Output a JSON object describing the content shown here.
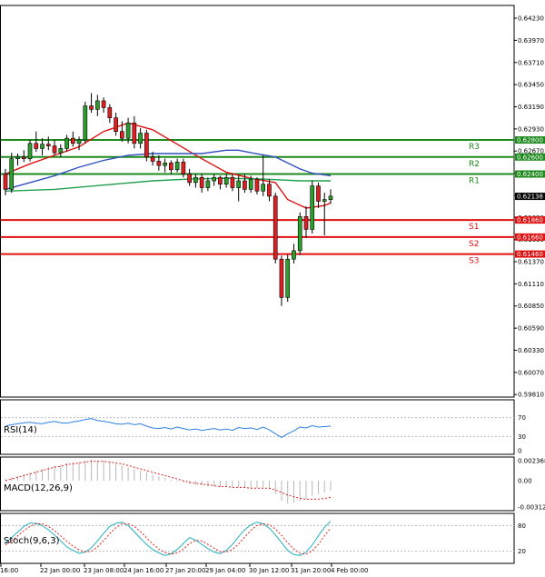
{
  "chart_data": {
    "type": "candlestick",
    "price_axis": {
      "ticks": [
        "0.64230",
        "0.63970",
        "0.63710",
        "0.63450",
        "0.63190",
        "0.62930",
        "0.62670",
        "0.62410",
        "0.62150",
        "0.61890",
        "0.61630",
        "0.61370",
        "0.61110",
        "0.60850",
        "0.60590",
        "0.60330",
        "0.60070",
        "0.59810"
      ],
      "range": [
        0.5978,
        0.6438
      ]
    },
    "x_ticks": [
      "16:00",
      "22 Jan 00:00",
      "23 Jan 08:00",
      "24 Jan 16:00",
      "27 Jan 20:00",
      "29 Jan 04:00",
      "30 Jan 12:00",
      "31 Jan 20:00",
      "4 Feb 00:00"
    ],
    "current_price": "0.62138",
    "levels": [
      {
        "label": "R3",
        "value": 0.628,
        "price_text": "0.62800",
        "color": "#1e8a1e"
      },
      {
        "label": "R2",
        "value": 0.626,
        "price_text": "0.62600",
        "color": "#1e8a1e"
      },
      {
        "label": "R1",
        "value": 0.624,
        "price_text": "0.62400",
        "color": "#1e8a1e"
      },
      {
        "label": "S1",
        "value": 0.6186,
        "price_text": "0.61860",
        "color": "#e01010"
      },
      {
        "label": "S2",
        "value": 0.6166,
        "price_text": "0.61660",
        "color": "#e01010"
      },
      {
        "label": "S3",
        "value": 0.6146,
        "price_text": "0.61460",
        "color": "#e01010"
      }
    ],
    "candles": [
      [
        0.624,
        0.6246,
        0.6215,
        0.6222
      ],
      [
        0.6222,
        0.6265,
        0.6218,
        0.6258
      ],
      [
        0.6258,
        0.6264,
        0.625,
        0.626
      ],
      [
        0.626,
        0.6268,
        0.6254,
        0.6258
      ],
      [
        0.6258,
        0.628,
        0.6255,
        0.6276
      ],
      [
        0.6276,
        0.629,
        0.6266,
        0.627
      ],
      [
        0.627,
        0.6282,
        0.6262,
        0.6275
      ],
      [
        0.6275,
        0.6284,
        0.6268,
        0.6273
      ],
      [
        0.6273,
        0.628,
        0.6262,
        0.6265
      ],
      [
        0.6265,
        0.6275,
        0.626,
        0.627
      ],
      [
        0.627,
        0.6286,
        0.6266,
        0.6282
      ],
      [
        0.6282,
        0.629,
        0.6272,
        0.6276
      ],
      [
        0.6276,
        0.6284,
        0.6268,
        0.628
      ],
      [
        0.628,
        0.6325,
        0.6276,
        0.632
      ],
      [
        0.632,
        0.6335,
        0.6312,
        0.6316
      ],
      [
        0.6316,
        0.6333,
        0.6308,
        0.6326
      ],
      [
        0.6326,
        0.633,
        0.6312,
        0.6318
      ],
      [
        0.6318,
        0.6322,
        0.63,
        0.6306
      ],
      [
        0.6306,
        0.6312,
        0.6285,
        0.629
      ],
      [
        0.629,
        0.6302,
        0.6278,
        0.6282
      ],
      [
        0.6282,
        0.6306,
        0.6276,
        0.63
      ],
      [
        0.63,
        0.6308,
        0.627,
        0.6276
      ],
      [
        0.6276,
        0.6294,
        0.627,
        0.6288
      ],
      [
        0.6288,
        0.6292,
        0.6255,
        0.626
      ],
      [
        0.626,
        0.6266,
        0.625,
        0.6255
      ],
      [
        0.6255,
        0.6262,
        0.6244,
        0.625
      ],
      [
        0.625,
        0.6258,
        0.6242,
        0.6253
      ],
      [
        0.6253,
        0.6256,
        0.624,
        0.6245
      ],
      [
        0.6245,
        0.6258,
        0.6242,
        0.6254
      ],
      [
        0.6254,
        0.6258,
        0.6236,
        0.624
      ],
      [
        0.624,
        0.6246,
        0.6226,
        0.623
      ],
      [
        0.623,
        0.624,
        0.6224,
        0.6236
      ],
      [
        0.6236,
        0.624,
        0.6218,
        0.6224
      ],
      [
        0.6224,
        0.6236,
        0.622,
        0.6232
      ],
      [
        0.6232,
        0.624,
        0.6226,
        0.6236
      ],
      [
        0.6236,
        0.6238,
        0.6222,
        0.6228
      ],
      [
        0.6228,
        0.624,
        0.6224,
        0.6236
      ],
      [
        0.6236,
        0.624,
        0.622,
        0.6224
      ],
      [
        0.6224,
        0.6238,
        0.6208,
        0.6232
      ],
      [
        0.6232,
        0.624,
        0.6218,
        0.6222
      ],
      [
        0.6222,
        0.6238,
        0.6218,
        0.6234
      ],
      [
        0.6234,
        0.6236,
        0.6216,
        0.622
      ],
      [
        0.622,
        0.6262,
        0.6214,
        0.6228
      ],
      [
        0.6228,
        0.6234,
        0.6208,
        0.6214
      ],
      [
        0.6214,
        0.6218,
        0.6135,
        0.614
      ],
      [
        0.614,
        0.6144,
        0.6085,
        0.6095
      ],
      [
        0.6095,
        0.6145,
        0.609,
        0.614
      ],
      [
        0.614,
        0.6158,
        0.6135,
        0.615
      ],
      [
        0.615,
        0.6195,
        0.6145,
        0.619
      ],
      [
        0.619,
        0.6202,
        0.6165,
        0.6175
      ],
      [
        0.6175,
        0.6232,
        0.617,
        0.6226
      ],
      [
        0.6226,
        0.623,
        0.62,
        0.6208
      ],
      [
        0.6208,
        0.6218,
        0.6168,
        0.621
      ],
      [
        0.621,
        0.6222,
        0.6205,
        0.6214
      ]
    ],
    "moving_averages": [
      {
        "color": "#e01010",
        "points": [
          [
            0,
            0.624
          ],
          [
            4,
            0.6252
          ],
          [
            8,
            0.6262
          ],
          [
            12,
            0.6272
          ],
          [
            16,
            0.629
          ],
          [
            20,
            0.63
          ],
          [
            24,
            0.6292
          ],
          [
            28,
            0.6275
          ],
          [
            32,
            0.6258
          ],
          [
            36,
            0.6242
          ],
          [
            40,
            0.6235
          ],
          [
            44,
            0.623
          ],
          [
            46,
            0.621
          ],
          [
            49,
            0.62
          ],
          [
            52,
            0.6203
          ],
          [
            53,
            0.6206
          ]
        ]
      },
      {
        "color": "#3050c0",
        "points": [
          [
            0,
            0.6222
          ],
          [
            4,
            0.623
          ],
          [
            8,
            0.6238
          ],
          [
            12,
            0.6248
          ],
          [
            16,
            0.6256
          ],
          [
            20,
            0.6262
          ],
          [
            24,
            0.6264
          ],
          [
            28,
            0.6264
          ],
          [
            32,
            0.6264
          ],
          [
            36,
            0.6268
          ],
          [
            38,
            0.6268
          ],
          [
            40,
            0.6265
          ],
          [
            44,
            0.626
          ],
          [
            48,
            0.6246
          ],
          [
            50,
            0.6241
          ],
          [
            53,
            0.6238
          ]
        ]
      },
      {
        "color": "#20a050",
        "points": [
          [
            0,
            0.622
          ],
          [
            8,
            0.6222
          ],
          [
            16,
            0.6227
          ],
          [
            24,
            0.6232
          ],
          [
            30,
            0.6234
          ],
          [
            36,
            0.6235
          ],
          [
            42,
            0.6234
          ],
          [
            48,
            0.6232
          ],
          [
            53,
            0.6232
          ]
        ]
      }
    ],
    "rsi": {
      "label": "RSI(14)",
      "ticks": [
        "70",
        "30",
        "0"
      ],
      "ref_levels": [
        70,
        30
      ],
      "values": [
        52,
        55,
        57,
        59,
        60,
        58,
        57,
        60,
        62,
        59,
        58,
        61,
        63,
        66,
        68,
        64,
        62,
        60,
        57,
        56,
        58,
        55,
        57,
        52,
        48,
        47,
        49,
        46,
        50,
        47,
        44,
        46,
        43,
        45,
        47,
        44,
        46,
        43,
        49,
        47,
        48,
        45,
        50,
        44,
        36,
        28,
        36,
        42,
        50,
        48,
        53,
        50,
        51,
        52
      ]
    },
    "macd": {
      "label": "MACD(12,26,9)",
      "ticks": [
        "0.002368",
        "0.00",
        "-0.003127"
      ],
      "range": [
        -0.003127,
        0.002368
      ],
      "histogram": [
        0.0002,
        0.0004,
        0.0006,
        0.0008,
        0.001,
        0.0012,
        0.0014,
        0.0016,
        0.0018,
        0.0019,
        0.0021,
        0.0022,
        0.0022,
        0.0024,
        0.0025,
        0.0024,
        0.0023,
        0.0022,
        0.002,
        0.0018,
        0.0016,
        0.0014,
        0.0012,
        0.001,
        0.0007,
        0.0005,
        0.0003,
        0.0001,
        -0.0001,
        -0.0002,
        -0.0004,
        -0.0005,
        -0.0006,
        -0.0007,
        -0.0007,
        -0.0008,
        -0.0008,
        -0.0008,
        -0.0008,
        -0.0009,
        -0.0009,
        -0.0009,
        -0.0008,
        -0.001,
        -0.0016,
        -0.0024,
        -0.0027,
        -0.0026,
        -0.0024,
        -0.0022,
        -0.0018,
        -0.0016,
        -0.0014,
        -0.0012
      ],
      "signal": [
        0.0,
        0.0002,
        0.0004,
        0.0006,
        0.0008,
        0.001,
        0.0012,
        0.0014,
        0.0016,
        0.0017,
        0.0019,
        0.002,
        0.0021,
        0.0022,
        0.0023,
        0.0023,
        0.0023,
        0.0022,
        0.0021,
        0.002,
        0.0018,
        0.0016,
        0.0014,
        0.0012,
        0.001,
        0.0008,
        0.0006,
        0.0004,
        0.0002,
        0.0,
        -0.0002,
        -0.0003,
        -0.0004,
        -0.0005,
        -0.0006,
        -0.0007,
        -0.0007,
        -0.0008,
        -0.0008,
        -0.0008,
        -0.0009,
        -0.0009,
        -0.0009,
        -0.0009,
        -0.0011,
        -0.0014,
        -0.0017,
        -0.0019,
        -0.0021,
        -0.0022,
        -0.0022,
        -0.0022,
        -0.0021,
        -0.002
      ]
    },
    "stoch": {
      "label": "Stoch(9,6,3)",
      "ticks": [
        "80",
        "20"
      ],
      "ref_levels": [
        80,
        20
      ],
      "main": [
        40,
        52,
        65,
        78,
        86,
        85,
        80,
        70,
        58,
        44,
        30,
        22,
        15,
        18,
        28,
        44,
        62,
        78,
        85,
        88,
        80,
        66,
        50,
        36,
        24,
        16,
        10,
        14,
        24,
        38,
        52,
        46,
        36,
        26,
        18,
        14,
        22,
        36,
        54,
        70,
        82,
        88,
        84,
        74,
        58,
        40,
        22,
        12,
        10,
        18,
        34,
        56,
        76,
        90
      ],
      "signal": [
        34,
        44,
        56,
        68,
        78,
        84,
        84,
        78,
        68,
        56,
        43,
        32,
        23,
        18,
        20,
        30,
        45,
        61,
        75,
        84,
        84,
        78,
        66,
        51,
        37,
        25,
        17,
        13,
        16,
        25,
        38,
        45,
        44,
        36,
        27,
        19,
        18,
        24,
        37,
        53,
        69,
        80,
        84,
        82,
        72,
        57,
        40,
        25,
        15,
        13,
        21,
        36,
        56,
        74
      ]
    }
  }
}
